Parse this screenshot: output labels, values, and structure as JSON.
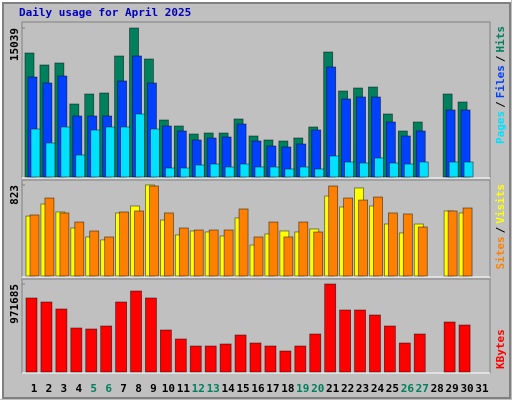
{
  "title": "Daily usage for April 2025",
  "legend_separator": "/",
  "categories": [
    "1",
    "2",
    "3",
    "4",
    "5",
    "6",
    "7",
    "8",
    "9",
    "10",
    "11",
    "12",
    "13",
    "14",
    "15",
    "16",
    "17",
    "18",
    "19",
    "20",
    "21",
    "22",
    "23",
    "24",
    "25",
    "26",
    "27",
    "28",
    "29",
    "30",
    "31"
  ],
  "category_colors": [
    "#000000",
    "#000000",
    "#000000",
    "#000000",
    "#00805c",
    "#00805c",
    "#000000",
    "#000000",
    "#000000",
    "#000000",
    "#000000",
    "#00805c",
    "#00805c",
    "#000000",
    "#000000",
    "#000000",
    "#000000",
    "#000000",
    "#00805c",
    "#00805c",
    "#000000",
    "#000000",
    "#000000",
    "#000000",
    "#000000",
    "#00805c",
    "#00805c",
    "#000000",
    "#000000",
    "#000000",
    "#000000"
  ],
  "chart_data": [
    {
      "type": "bar",
      "ylim": [
        0,
        15039
      ],
      "yticks": [
        15039
      ],
      "series": [
        {
          "name": "Hits",
          "color": "#00805c",
          "values": [
            12516,
            11305,
            11506,
            7368,
            8377,
            8478,
            12213,
            15039,
            11910,
            5753,
            5148,
            4340,
            4441,
            4441,
            5854,
            4138,
            3735,
            3634,
            3936,
            5047,
            12617,
            8680,
            8983,
            9084,
            6359,
            4643,
            5551,
            0,
            8377,
            7570,
            0
          ]
        },
        {
          "name": "Files",
          "color": "#0040ff",
          "values": [
            10093,
            9488,
            10194,
            6157,
            6157,
            6157,
            9690,
            12213,
            9488,
            5148,
            4643,
            3735,
            3936,
            4037,
            5349,
            3634,
            3129,
            3028,
            3331,
            4744,
            11102,
            7873,
            8074,
            8074,
            5551,
            4138,
            4643,
            0,
            6762,
            6762,
            0
          ]
        },
        {
          "name": "Pages",
          "color": "#00e0ff",
          "values": [
            4845,
            3432,
            5047,
            2220,
            4744,
            5047,
            5047,
            6359,
            4845,
            908,
            908,
            1211,
            1312,
            1009,
            1312,
            1009,
            1009,
            807,
            1009,
            807,
            2120,
            1514,
            1413,
            1918,
            1413,
            1312,
            1514,
            0,
            1514,
            1514,
            0
          ]
        }
      ],
      "legend_order": [
        "Pages",
        "Files",
        "Hits"
      ]
    },
    {
      "type": "bar",
      "ylim": [
        0,
        823
      ],
      "yticks": [
        823
      ],
      "series": [
        {
          "name": "Visits",
          "color": "#ffff00",
          "values": [
            542,
            651,
            579,
            434,
            353,
            326,
            570,
            633,
            823,
            506,
            371,
            407,
            398,
            362,
            525,
            280,
            380,
            407,
            398,
            425,
            723,
            624,
            796,
            633,
            470,
            389,
            470,
            0,
            588,
            570,
            0
          ]
        },
        {
          "name": "Sites",
          "color": "#ff8000",
          "values": [
            552,
            705,
            570,
            488,
            407,
            353,
            579,
            588,
            814,
            570,
            434,
            416,
            416,
            416,
            606,
            353,
            488,
            353,
            488,
            398,
            814,
            705,
            687,
            714,
            570,
            561,
            443,
            0,
            588,
            615,
            0
          ]
        }
      ],
      "legend_order": [
        "Sites",
        "Visits"
      ]
    },
    {
      "type": "bar",
      "ylim": [
        0,
        971685
      ],
      "yticks": [
        971685
      ],
      "series": [
        {
          "name": "KBytes",
          "color": "#ff0000",
          "values": [
            817099,
            772931,
            695638,
            485843,
            474801,
            507926,
            772931,
            894392,
            817099,
            463759,
            364382,
            287089,
            287089,
            309173,
            408550,
            320215,
            287089,
            231876,
            287089,
            419591,
            971685,
            684596,
            684596,
            629386,
            507926,
            320215,
            419591,
            0,
            552094,
            518969,
            0
          ]
        }
      ],
      "legend_order": [
        "KBytes"
      ]
    }
  ]
}
